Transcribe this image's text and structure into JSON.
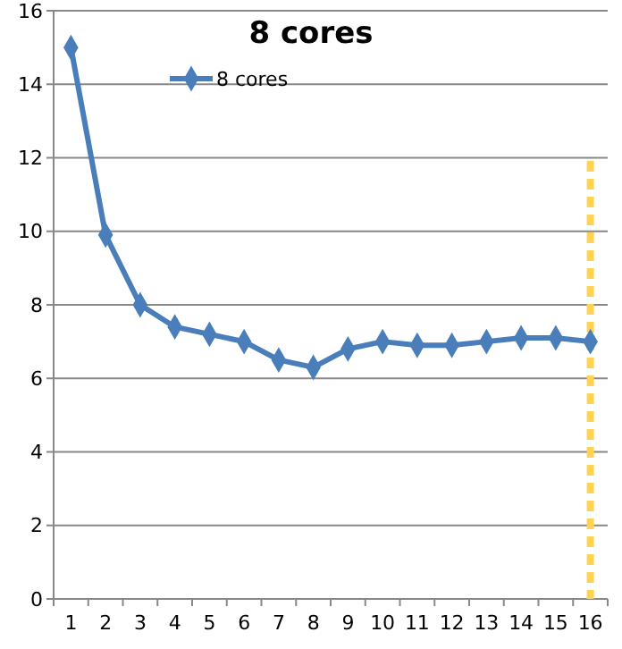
{
  "chart_data": {
    "type": "line",
    "title": "8 cores",
    "categories": [
      "1",
      "2",
      "3",
      "4",
      "5",
      "6",
      "7",
      "8",
      "9",
      "10",
      "11",
      "12",
      "13",
      "14",
      "15",
      "16"
    ],
    "series": [
      {
        "name": "8 cores",
        "color": "#4a7ebb",
        "values": [
          15,
          9.9,
          8,
          7.4,
          7.2,
          7.0,
          6.5,
          6.3,
          6.8,
          7.0,
          6.9,
          6.9,
          7.0,
          7.1,
          7.1,
          7.0
        ]
      }
    ],
    "ylim": [
      0,
      16
    ],
    "yticks": [
      0,
      2,
      4,
      6,
      8,
      10,
      12,
      14,
      16
    ],
    "grid": "y",
    "legend": "top left",
    "marker": "diamond",
    "line_style": "solid",
    "ref_lines": [
      {
        "axis": "x",
        "value": "16",
        "color": "#ffd34f",
        "line_style": "dashed"
      }
    ]
  }
}
